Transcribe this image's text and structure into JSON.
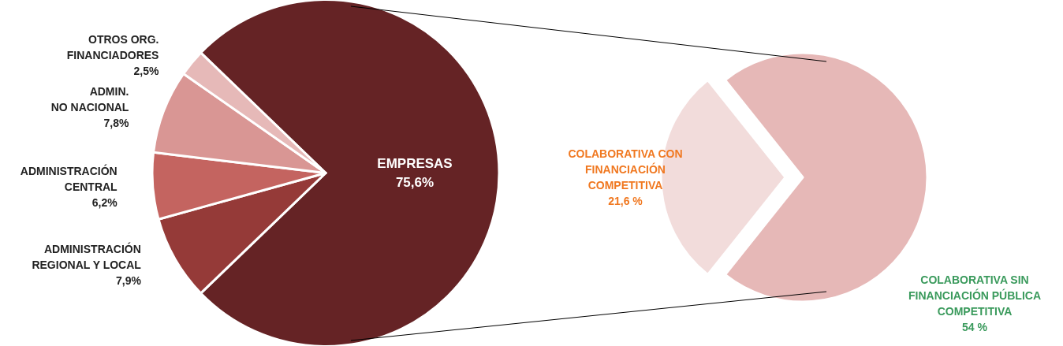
{
  "chart_data": [
    {
      "type": "pie",
      "categories": [
        "EMPRESAS",
        "ADMINISTRACIÓN\nREGIONAL Y LOCAL",
        "ADMINISTRACIÓN\nCENTRAL",
        "ADMIN.\nNO NACIONAL",
        "OTROS ORG.\nFINANCIADORES"
      ],
      "values": [
        75.6,
        7.9,
        6.2,
        7.8,
        2.5
      ],
      "value_labels": [
        "75,6%",
        "7,9%",
        "6,2%",
        "7,8%",
        "2,5%"
      ],
      "colors": [
        "#652325",
        "#953a38",
        "#c46460",
        "#d99694",
        "#e6b9b8"
      ],
      "legend": false
    },
    {
      "type": "pie",
      "categories": [
        "COLABORATIVA CON\nFINANCIACIÓN\nCOMPETITIVA",
        "COLABORATIVA SIN\nFINANCIACIÓN PÚBLICA\nCOMPETITIVA"
      ],
      "values": [
        21.6,
        54
      ],
      "value_labels": [
        "21,6 %",
        "54 %"
      ],
      "colors": [
        "#f2dcdb",
        "#e6b8b7"
      ],
      "legend": false
    }
  ]
}
